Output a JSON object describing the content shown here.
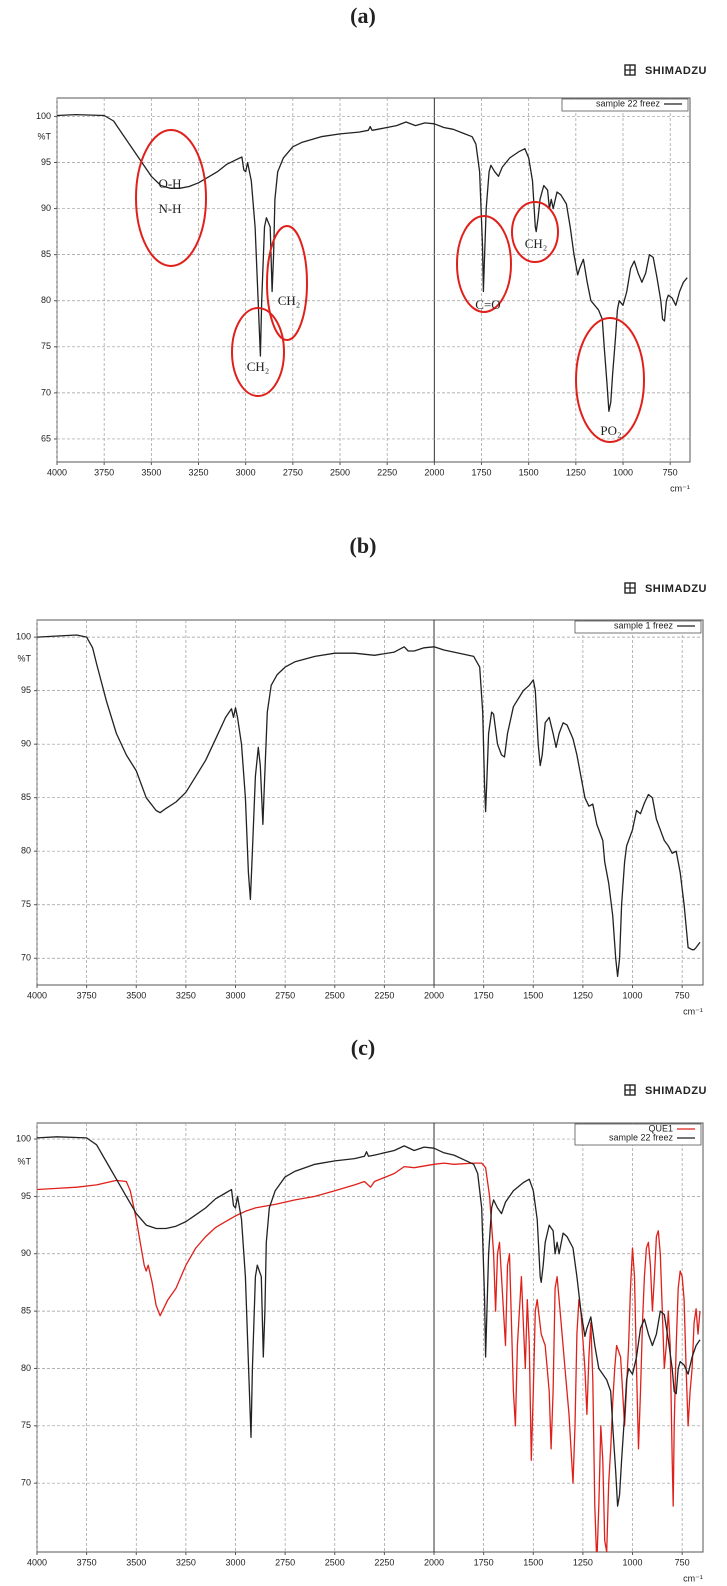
{
  "chart_data": [
    {
      "type": "line",
      "panel_label": "(a)",
      "brand": "SHIMADZU",
      "y_label": "%T",
      "x_label": "cm⁻¹",
      "xlim": [
        4000,
        645
      ],
      "xticks": [
        4000,
        3750,
        3500,
        3250,
        3000,
        2750,
        2500,
        2250,
        2000,
        1750,
        1500,
        1250,
        1000,
        750
      ],
      "ylim": [
        62.5,
        102
      ],
      "yticks": [
        65,
        70,
        75,
        80,
        85,
        90,
        95,
        100
      ],
      "grid": true,
      "axis_break": 2000,
      "legend": "upper right",
      "annotations": [
        "O-H",
        "N-H",
        "CH₂",
        "CH₂",
        "C=O",
        "CH₂",
        "PO₂"
      ],
      "series": [
        {
          "name": "sample 22 freez",
          "color": "#222222",
          "x": [
            4000,
            3900,
            3750,
            3700,
            3650,
            3600,
            3550,
            3500,
            3450,
            3400,
            3350,
            3300,
            3250,
            3200,
            3150,
            3100,
            3050,
            3020,
            3010,
            3000,
            2990,
            2970,
            2950,
            2930,
            2922,
            2915,
            2900,
            2890,
            2870,
            2860,
            2852,
            2845,
            2830,
            2800,
            2750,
            2700,
            2600,
            2500,
            2400,
            2350,
            2340,
            2330,
            2300,
            2200,
            2150,
            2100,
            2050,
            2000,
            1950,
            1900,
            1850,
            1800,
            1780,
            1760,
            1745,
            1740,
            1735,
            1725,
            1710,
            1700,
            1680,
            1660,
            1640,
            1600,
            1550,
            1520,
            1500,
            1480,
            1465,
            1460,
            1450,
            1440,
            1420,
            1400,
            1390,
            1380,
            1370,
            1350,
            1330,
            1300,
            1280,
            1260,
            1240,
            1230,
            1220,
            1210,
            1190,
            1170,
            1150,
            1130,
            1110,
            1100,
            1085,
            1075,
            1065,
            1055,
            1040,
            1030,
            1020,
            1000,
            980,
            960,
            940,
            920,
            900,
            880,
            860,
            840,
            820,
            800,
            790,
            780,
            770,
            760,
            740,
            720,
            700,
            680,
            660
          ],
          "values": [
            100.1,
            100.2,
            100.1,
            99.5,
            98,
            96.5,
            95,
            93.5,
            92.5,
            92.2,
            92.2,
            92.4,
            92.8,
            93.4,
            94,
            94.8,
            95.3,
            95.6,
            94.2,
            94,
            95,
            93,
            88,
            78,
            74,
            80,
            88,
            89,
            88,
            81,
            85,
            91,
            94,
            95.5,
            96.7,
            97.2,
            97.8,
            98.1,
            98.3,
            98.5,
            98.9,
            98.5,
            98.6,
            99,
            99.4,
            99,
            99.3,
            99.2,
            98.8,
            98.6,
            98.2,
            97.8,
            97,
            94,
            86,
            81,
            84,
            90,
            94,
            94.7,
            94,
            93.5,
            94.5,
            95.5,
            96.2,
            96.5,
            95.5,
            93,
            88,
            87.5,
            89,
            91,
            92.5,
            92,
            90,
            91,
            90,
            91.8,
            91.5,
            90.5,
            88,
            85,
            82.8,
            83.5,
            84,
            84.5,
            82,
            80,
            79.5,
            79,
            78,
            75,
            71,
            68,
            69,
            72,
            76,
            79,
            80,
            79.5,
            81,
            83.5,
            84.3,
            83,
            82,
            83,
            85,
            84.7,
            82.5,
            80,
            78,
            77.8,
            80,
            80.6,
            80.3,
            79.5,
            81,
            82,
            82.5
          ]
        }
      ]
    },
    {
      "type": "line",
      "panel_label": "(b)",
      "brand": "SHIMADZU",
      "y_label": "%T",
      "x_label": "cm⁻¹",
      "xlim": [
        4000,
        645
      ],
      "xticks": [
        4000,
        3750,
        3500,
        3250,
        3000,
        2750,
        2500,
        2250,
        2000,
        1750,
        1500,
        1250,
        1000,
        750
      ],
      "ylim": [
        67.5,
        101.6
      ],
      "yticks": [
        70,
        75,
        80,
        85,
        90,
        95,
        100
      ],
      "grid": true,
      "axis_break": 2000,
      "legend": "upper right",
      "series": [
        {
          "name": "sample 1 freez",
          "color": "#222222",
          "x": [
            4000,
            3800,
            3750,
            3720,
            3700,
            3650,
            3600,
            3550,
            3500,
            3450,
            3400,
            3380,
            3350,
            3300,
            3250,
            3200,
            3150,
            3100,
            3050,
            3020,
            3010,
            3000,
            2990,
            2970,
            2950,
            2935,
            2925,
            2915,
            2900,
            2885,
            2875,
            2862,
            2855,
            2840,
            2820,
            2790,
            2750,
            2700,
            2600,
            2500,
            2400,
            2300,
            2200,
            2150,
            2130,
            2100,
            2050,
            2000,
            1950,
            1900,
            1850,
            1800,
            1770,
            1755,
            1745,
            1740,
            1735,
            1725,
            1710,
            1700,
            1680,
            1660,
            1645,
            1630,
            1600,
            1550,
            1520,
            1500,
            1490,
            1475,
            1465,
            1455,
            1440,
            1420,
            1400,
            1385,
            1370,
            1350,
            1330,
            1300,
            1280,
            1260,
            1240,
            1220,
            1200,
            1180,
            1160,
            1150,
            1140,
            1120,
            1100,
            1085,
            1075,
            1065,
            1055,
            1040,
            1030,
            1020,
            1000,
            980,
            960,
            940,
            920,
            900,
            880,
            860,
            840,
            820,
            800,
            780,
            760,
            740,
            720,
            700,
            690,
            680,
            660
          ],
          "values": [
            100,
            100.2,
            100,
            99,
            97.5,
            94,
            91,
            89,
            87.5,
            85,
            83.8,
            83.6,
            84,
            84.6,
            85.5,
            87,
            88.5,
            90.5,
            92.5,
            93.3,
            92.5,
            93.4,
            92.5,
            90,
            85,
            78,
            75.5,
            80,
            87,
            89.7,
            88,
            82.5,
            86,
            93,
            95.5,
            96.5,
            97.2,
            97.7,
            98.2,
            98.5,
            98.5,
            98.3,
            98.6,
            99.1,
            98.7,
            98.7,
            99,
            99.1,
            98.8,
            98.6,
            98.4,
            98.2,
            97.2,
            93,
            86,
            83.7,
            86,
            91,
            93,
            92.8,
            90,
            89,
            88.8,
            91,
            93.5,
            95,
            95.5,
            96,
            95,
            90,
            88,
            89,
            92,
            92.5,
            91,
            89.7,
            91,
            92,
            91.8,
            90.5,
            89,
            87,
            85,
            84.2,
            84.4,
            82.5,
            81.5,
            81,
            79,
            77,
            74,
            70,
            68.3,
            70,
            75,
            79,
            80.5,
            81,
            82,
            83.8,
            83.5,
            84.5,
            85.3,
            85,
            83,
            82,
            81,
            80.5,
            79.8,
            80,
            78,
            75,
            71,
            70.8,
            70.8,
            71,
            71.5
          ]
        }
      ]
    },
    {
      "type": "line",
      "panel_label": "(c)",
      "brand": "SHIMADZU",
      "y_label": "%T",
      "x_label": "cm⁻¹",
      "xlim": [
        4000,
        645
      ],
      "xticks": [
        4000,
        3750,
        3500,
        3250,
        3000,
        2750,
        2500,
        2250,
        2000,
        1750,
        1500,
        1250,
        1000,
        750
      ],
      "ylim": [
        64,
        101.4
      ],
      "yticks": [
        70,
        75,
        80,
        85,
        90,
        95,
        100
      ],
      "grid": true,
      "axis_break": 2000,
      "legend": "upper right",
      "series": [
        {
          "name": "QUE1",
          "color": "#e0201b",
          "x": [
            4000,
            3900,
            3800,
            3700,
            3600,
            3550,
            3530,
            3500,
            3480,
            3460,
            3450,
            3440,
            3420,
            3400,
            3380,
            3360,
            3340,
            3300,
            3250,
            3200,
            3150,
            3100,
            3050,
            3000,
            2950,
            2900,
            2800,
            2700,
            2600,
            2500,
            2400,
            2350,
            2320,
            2300,
            2200,
            2150,
            2100,
            2000,
            1950,
            1900,
            1800,
            1760,
            1740,
            1720,
            1700,
            1690,
            1680,
            1670,
            1650,
            1640,
            1630,
            1620,
            1600,
            1590,
            1580,
            1560,
            1550,
            1540,
            1530,
            1520,
            1510,
            1500,
            1490,
            1480,
            1460,
            1440,
            1420,
            1410,
            1400,
            1390,
            1380,
            1360,
            1340,
            1320,
            1300,
            1290,
            1280,
            1270,
            1260,
            1240,
            1230,
            1220,
            1210,
            1200,
            1190,
            1180,
            1170,
            1160,
            1150,
            1140,
            1130,
            1120,
            1110,
            1100,
            1090,
            1080,
            1060,
            1040,
            1020,
            1010,
            1000,
            990,
            980,
            970,
            960,
            950,
            940,
            930,
            920,
            910,
            900,
            890,
            880,
            870,
            860,
            850,
            840,
            830,
            820,
            810,
            800,
            795,
            790,
            780,
            770,
            760,
            750,
            740,
            730,
            720,
            710,
            700,
            690,
            680,
            670,
            660
          ],
          "values": [
            95.6,
            95.7,
            95.8,
            96,
            96.4,
            96.3,
            95.5,
            93,
            91,
            89,
            88.5,
            89,
            87.5,
            85.5,
            84.6,
            85.3,
            86,
            87,
            89,
            90.5,
            91.5,
            92.3,
            92.8,
            93.3,
            93.7,
            94,
            94.3,
            94.7,
            95,
            95.5,
            96,
            96.3,
            95.8,
            96.3,
            97,
            97.6,
            97.5,
            97.8,
            97.9,
            97.8,
            97.9,
            97.9,
            97.5,
            95,
            90,
            85,
            90,
            91,
            85,
            82,
            89,
            90,
            78,
            75,
            82,
            88,
            84,
            80,
            86,
            82,
            72,
            78,
            85,
            86,
            83,
            82,
            78,
            73,
            78,
            87,
            88,
            84,
            80,
            76,
            70,
            75,
            83,
            86,
            85,
            80,
            76,
            81,
            84,
            79,
            68,
            63,
            68,
            75,
            72,
            65,
            64,
            70,
            73,
            77,
            80,
            82,
            81,
            75,
            82,
            87,
            90.5,
            88,
            80,
            73,
            78,
            84,
            88,
            90.5,
            91,
            89,
            85,
            88,
            91.5,
            92,
            90,
            85,
            80,
            82,
            85,
            82,
            72,
            68,
            75,
            82,
            87,
            88.5,
            88,
            86,
            80,
            75,
            78,
            80,
            84,
            85.2,
            83,
            85
          ]
        },
        {
          "name": "sample 22 freez",
          "color": "#222222",
          "x": [
            4000,
            3900,
            3750,
            3700,
            3650,
            3600,
            3550,
            3500,
            3450,
            3400,
            3350,
            3300,
            3250,
            3200,
            3150,
            3100,
            3050,
            3020,
            3010,
            3000,
            2990,
            2970,
            2950,
            2930,
            2922,
            2915,
            2900,
            2890,
            2870,
            2860,
            2852,
            2845,
            2830,
            2800,
            2750,
            2700,
            2600,
            2500,
            2400,
            2350,
            2340,
            2330,
            2300,
            2200,
            2150,
            2100,
            2050,
            2000,
            1950,
            1900,
            1850,
            1800,
            1780,
            1760,
            1745,
            1740,
            1735,
            1725,
            1710,
            1700,
            1680,
            1660,
            1640,
            1600,
            1550,
            1520,
            1500,
            1480,
            1465,
            1460,
            1450,
            1440,
            1420,
            1400,
            1390,
            1380,
            1370,
            1350,
            1330,
            1300,
            1280,
            1260,
            1240,
            1230,
            1220,
            1210,
            1190,
            1170,
            1150,
            1130,
            1110,
            1100,
            1085,
            1075,
            1065,
            1055,
            1040,
            1030,
            1020,
            1000,
            980,
            960,
            940,
            920,
            900,
            880,
            860,
            840,
            820,
            800,
            790,
            780,
            770,
            760,
            740,
            720,
            700,
            680,
            660
          ],
          "values": [
            100.1,
            100.2,
            100.1,
            99.5,
            98,
            96.5,
            95,
            93.5,
            92.5,
            92.2,
            92.2,
            92.4,
            92.8,
            93.4,
            94,
            94.8,
            95.3,
            95.6,
            94.2,
            94,
            95,
            93,
            88,
            78,
            74,
            80,
            88,
            89,
            88,
            81,
            85,
            91,
            94,
            95.5,
            96.7,
            97.2,
            97.8,
            98.1,
            98.3,
            98.5,
            98.9,
            98.5,
            98.6,
            99,
            99.4,
            99,
            99.3,
            99.2,
            98.8,
            98.6,
            98.2,
            97.8,
            97,
            94,
            86,
            81,
            84,
            90,
            94,
            94.7,
            94,
            93.5,
            94.5,
            95.5,
            96.2,
            96.5,
            95.5,
            93,
            88,
            87.5,
            89,
            91,
            92.5,
            92,
            90,
            91,
            90,
            91.8,
            91.5,
            90.5,
            88,
            85,
            82.8,
            83.5,
            84,
            84.5,
            82,
            80,
            79.5,
            79,
            78,
            75,
            71,
            68,
            69,
            72,
            76,
            79,
            80,
            79.5,
            81,
            83.5,
            84.3,
            83,
            82,
            83,
            85,
            84.7,
            82.5,
            80,
            78,
            77.8,
            80,
            80.6,
            80.3,
            79.5,
            81,
            82,
            82.5
          ]
        }
      ]
    }
  ]
}
